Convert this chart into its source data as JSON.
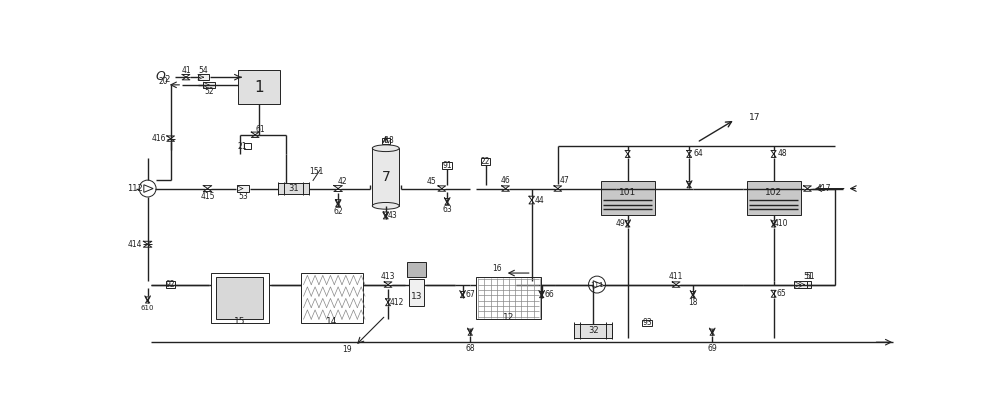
{
  "bg_color": "#ffffff",
  "line_color": "#222222",
  "figsize": [
    10.0,
    4.19
  ],
  "dpi": 100,
  "xlim": [
    0,
    100
  ],
  "ylim": [
    0,
    42
  ]
}
